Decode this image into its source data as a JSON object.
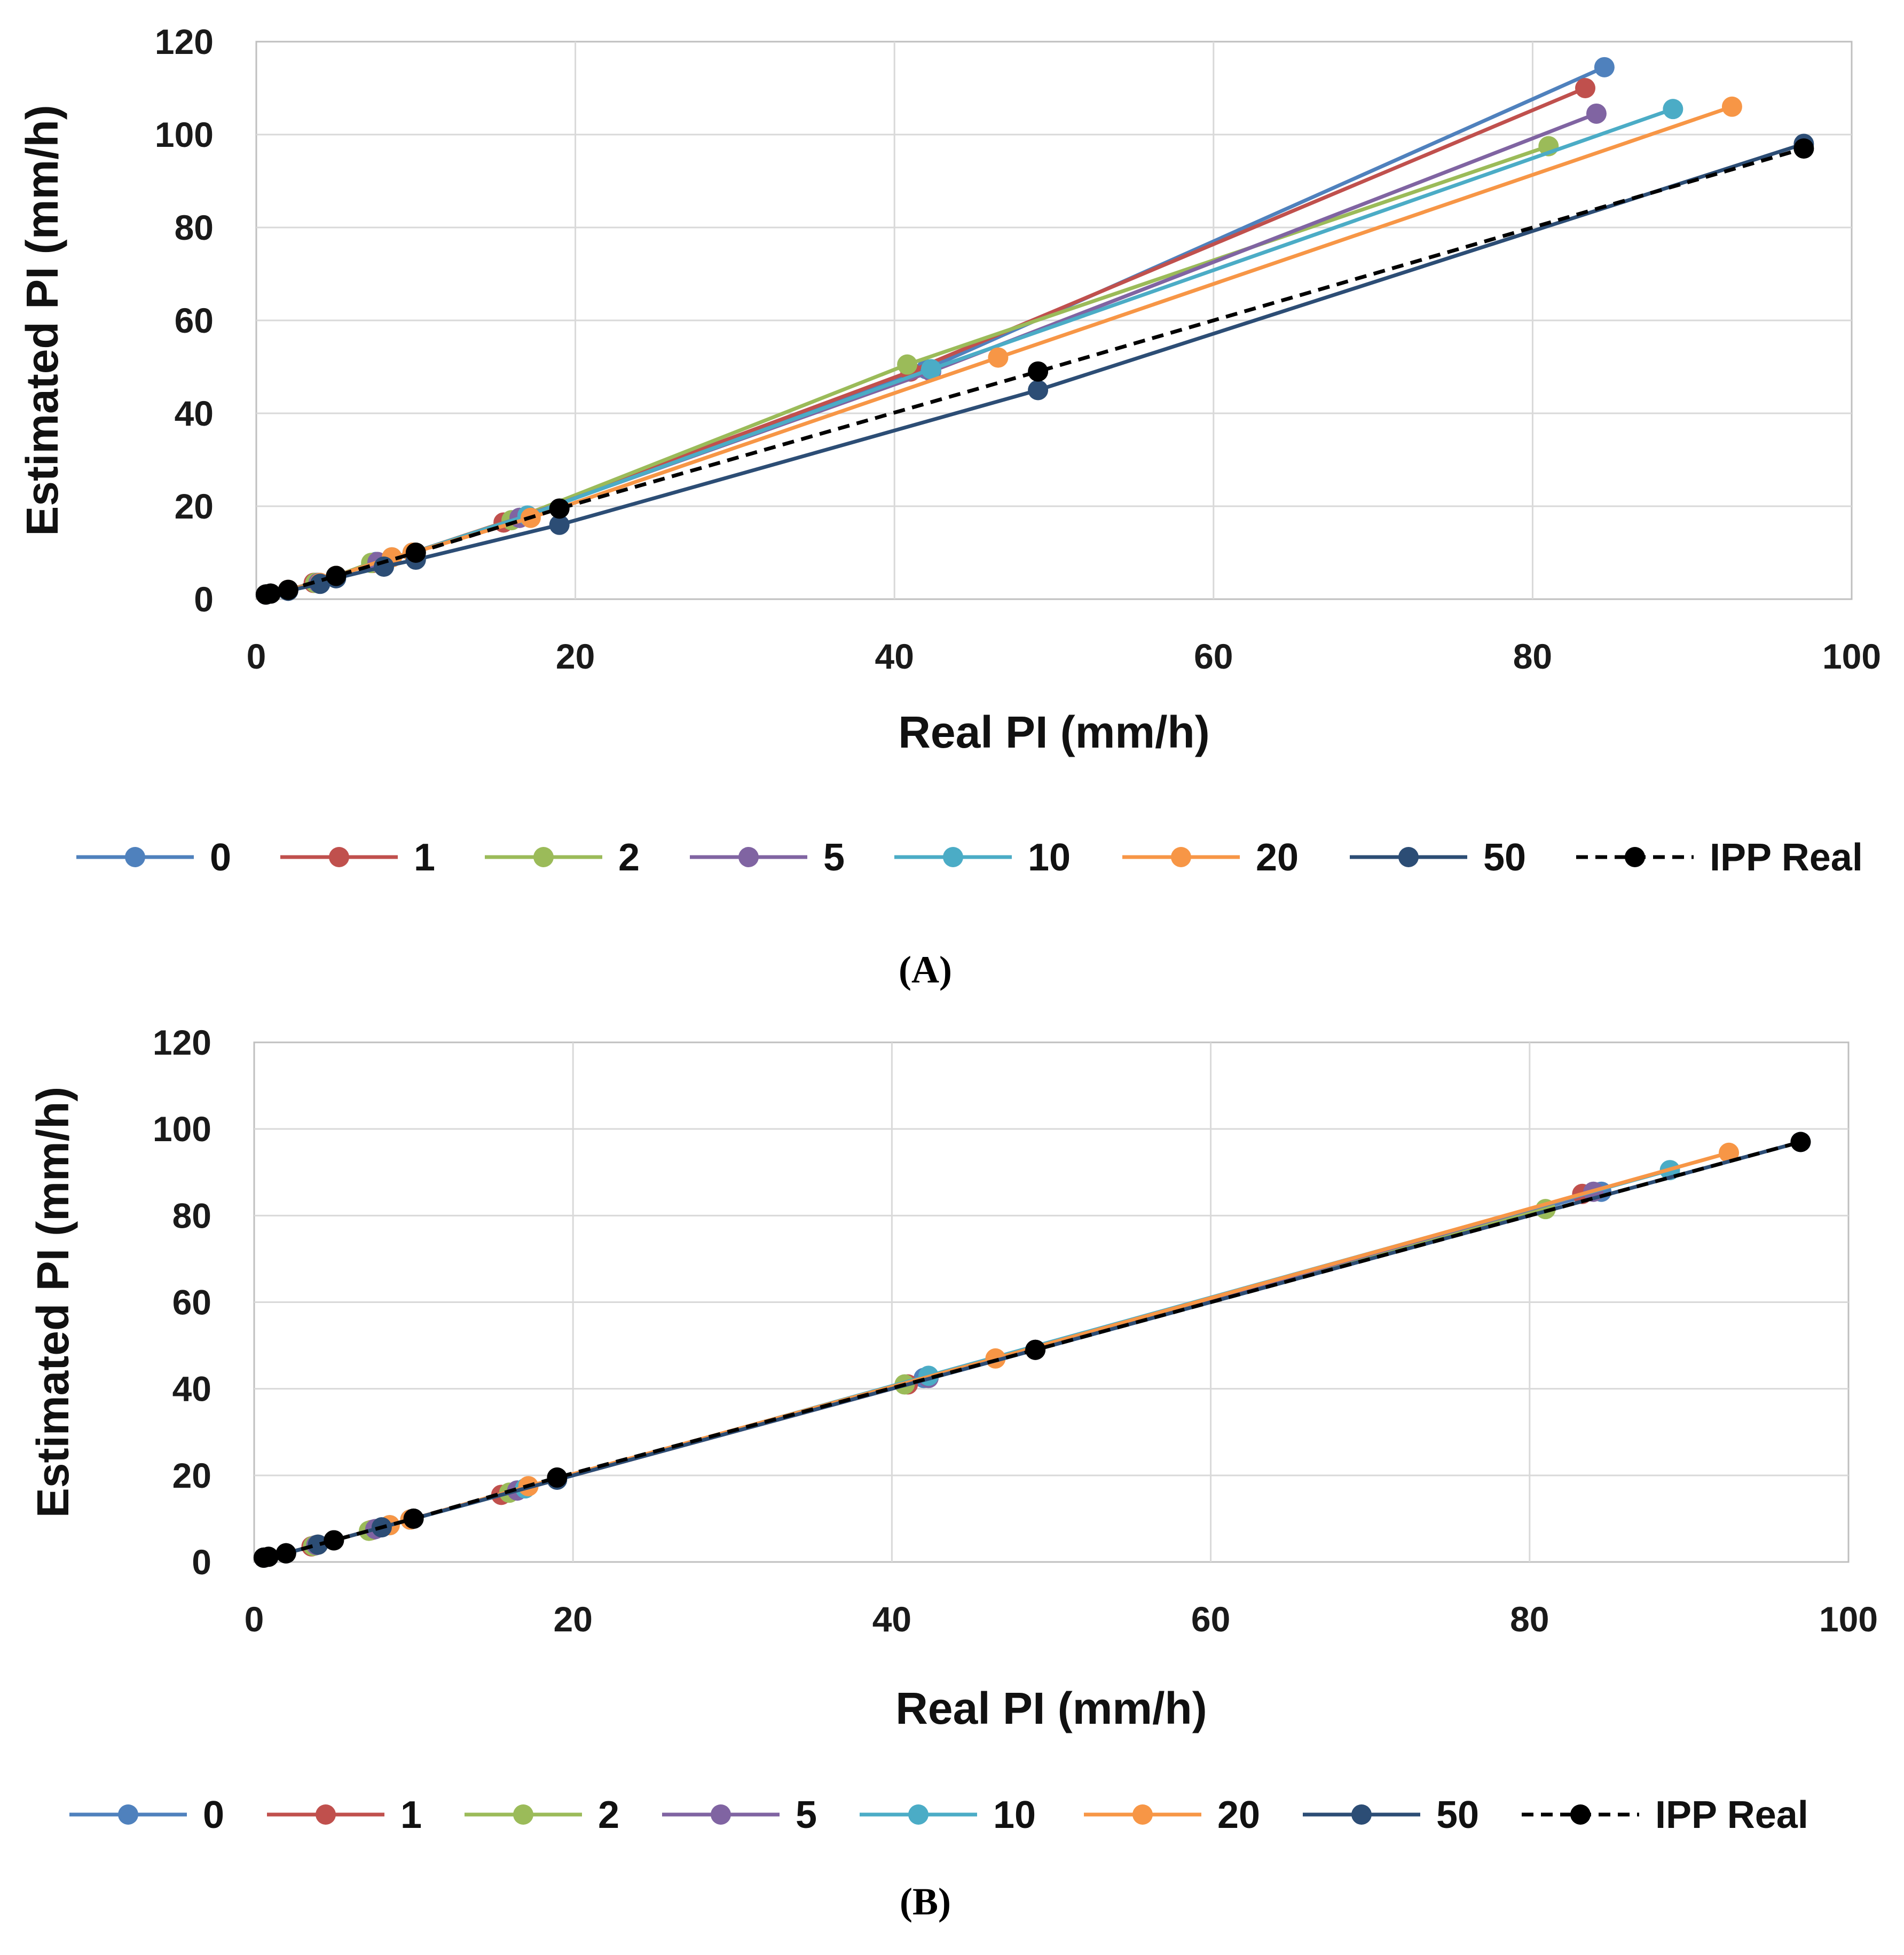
{
  "chart_data": [
    {
      "type": "line",
      "panel_label": "(A)",
      "xlabel": "Real PI (mm/h)",
      "ylabel": "Estimated PI (mm/h)",
      "xlim": [
        0,
        100
      ],
      "ylim": [
        0,
        120
      ],
      "xticks": [
        "0",
        "20",
        "40",
        "60",
        "80",
        "100"
      ],
      "yticks": [
        "0",
        "20",
        "40",
        "60",
        "80",
        "100",
        "120"
      ],
      "grid": true,
      "legend_position": "bottom",
      "series": [
        {
          "name": "0",
          "color": "#4f81bd",
          "style": "solid",
          "x": [
            0.6,
            2,
            3.8,
            5,
            7.5,
            9.8,
            16.5,
            42,
            84.5
          ],
          "y": [
            1,
            2,
            3.5,
            5,
            8,
            10,
            17.5,
            49.5,
            114.5
          ]
        },
        {
          "name": "1",
          "color": "#c0504d",
          "style": "solid",
          "x": [
            0.6,
            2,
            3.6,
            5,
            7.3,
            9.8,
            15.5,
            41,
            83.3
          ],
          "y": [
            1,
            2,
            3.5,
            5,
            7.8,
            10,
            16.5,
            49,
            110
          ]
        },
        {
          "name": "2",
          "color": "#9bbb59",
          "style": "solid",
          "x": [
            0.6,
            2,
            3.7,
            5,
            7.2,
            9.8,
            16,
            40.8,
            81
          ],
          "y": [
            1,
            2,
            3.5,
            5,
            7.8,
            10,
            17,
            50.5,
            97.5
          ]
        },
        {
          "name": "5",
          "color": "#8064a2",
          "style": "solid",
          "x": [
            0.6,
            2,
            3.9,
            5,
            7.6,
            9.8,
            16.5,
            42.3,
            84
          ],
          "y": [
            1,
            2,
            3.5,
            5,
            8,
            10,
            17.5,
            49,
            104.5
          ]
        },
        {
          "name": "10",
          "color": "#4bacc6",
          "style": "solid",
          "x": [
            0.6,
            2,
            4,
            5,
            8.5,
            9.8,
            17,
            42.3,
            88.8
          ],
          "y": [
            1,
            2,
            3.5,
            5,
            9,
            10,
            18,
            49.5,
            105.5
          ]
        },
        {
          "name": "20",
          "color": "#f79646",
          "style": "solid",
          "x": [
            0.6,
            2,
            4,
            5,
            8.5,
            9.8,
            17.2,
            46.5,
            92.5
          ],
          "y": [
            1,
            2,
            3.5,
            5,
            9,
            10,
            17.5,
            52,
            106
          ]
        },
        {
          "name": "50",
          "color": "#2c4d75",
          "style": "solid",
          "x": [
            0.6,
            2,
            4,
            5,
            8,
            10,
            19,
            49,
            97
          ],
          "y": [
            1,
            1.8,
            3.3,
            4.5,
            7,
            8.5,
            16,
            45,
            98
          ]
        },
        {
          "name": "IPP Real",
          "color": "#000000",
          "style": "dashed",
          "x": [
            0.6,
            0.9,
            2,
            5,
            10,
            19,
            49,
            97
          ],
          "y": [
            1,
            1.2,
            2,
            5,
            10,
            19.5,
            49,
            97
          ]
        }
      ]
    },
    {
      "type": "line",
      "panel_label": "(B)",
      "xlabel": "Real PI (mm/h)",
      "ylabel": "Estimated PI (mm/h)",
      "xlim": [
        0,
        100
      ],
      "ylim": [
        0,
        120
      ],
      "xticks": [
        "0",
        "20",
        "40",
        "60",
        "80",
        "100"
      ],
      "yticks": [
        "0",
        "20",
        "40",
        "60",
        "80",
        "100",
        "120"
      ],
      "grid": true,
      "legend_position": "bottom",
      "series": [
        {
          "name": "0",
          "color": "#4f81bd",
          "style": "solid",
          "x": [
            0.6,
            2,
            3.8,
            5,
            7.5,
            9.8,
            16.5,
            42,
            84.5
          ],
          "y": [
            1,
            2,
            3.8,
            5,
            7.5,
            9.8,
            16.5,
            42.5,
            85.5
          ]
        },
        {
          "name": "1",
          "color": "#c0504d",
          "style": "solid",
          "x": [
            0.6,
            2,
            3.6,
            5,
            7.3,
            9.8,
            15.5,
            41,
            83.3
          ],
          "y": [
            1,
            2,
            3.6,
            5,
            7.3,
            9.8,
            15.5,
            41,
            85
          ]
        },
        {
          "name": "2",
          "color": "#9bbb59",
          "style": "solid",
          "x": [
            0.6,
            2,
            3.7,
            5,
            7.2,
            9.8,
            16,
            40.8,
            81
          ],
          "y": [
            1,
            2,
            3.7,
            5,
            7.2,
            9.8,
            16,
            41,
            81.5
          ]
        },
        {
          "name": "5",
          "color": "#8064a2",
          "style": "solid",
          "x": [
            0.6,
            2,
            3.9,
            5,
            7.6,
            9.8,
            16.5,
            42.3,
            84
          ],
          "y": [
            1,
            2,
            3.9,
            5,
            7.6,
            9.8,
            16.5,
            42.5,
            85.5
          ]
        },
        {
          "name": "10",
          "color": "#4bacc6",
          "style": "solid",
          "x": [
            0.6,
            2,
            4,
            5,
            8.5,
            9.8,
            17,
            42.3,
            88.8
          ],
          "y": [
            1,
            2,
            4,
            5,
            8.5,
            9.8,
            17,
            43,
            90.5
          ]
        },
        {
          "name": "20",
          "color": "#f79646",
          "style": "solid",
          "x": [
            0.6,
            2,
            4,
            5,
            8.5,
            9.8,
            17.2,
            46.5,
            92.5
          ],
          "y": [
            1,
            2,
            4,
            5,
            8.5,
            9.8,
            17.5,
            47,
            94.5
          ]
        },
        {
          "name": "50",
          "color": "#2c4d75",
          "style": "solid",
          "x": [
            0.6,
            2,
            4,
            5,
            8,
            10,
            19,
            49,
            97
          ],
          "y": [
            1,
            2,
            4,
            5,
            8,
            10,
            19,
            49,
            97
          ]
        },
        {
          "name": "IPP Real",
          "color": "#000000",
          "style": "dashed",
          "x": [
            0.6,
            0.9,
            2,
            5,
            10,
            19,
            49,
            97
          ],
          "y": [
            1,
            1.2,
            2,
            5,
            10,
            19.5,
            49,
            97
          ]
        }
      ]
    }
  ]
}
